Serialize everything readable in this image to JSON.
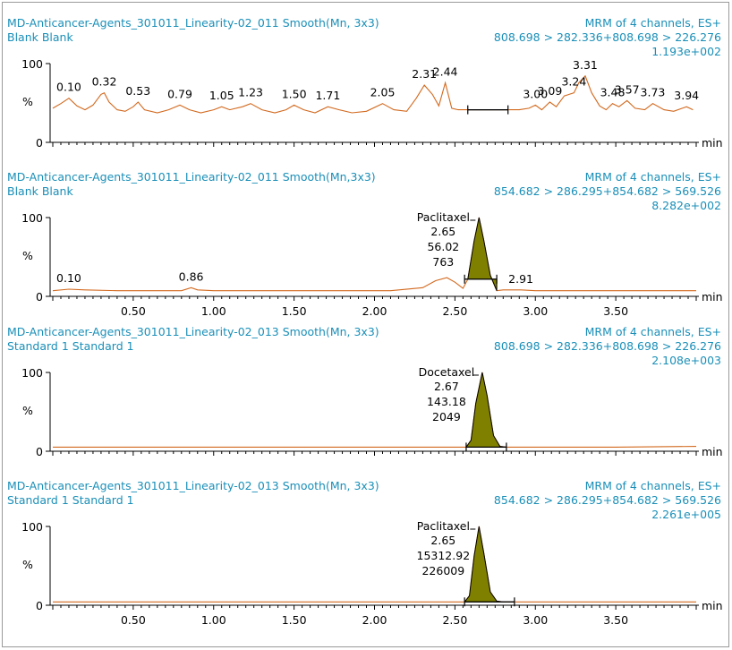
{
  "colors": {
    "header": "#1a8fb8",
    "trace": "#d2691e",
    "peak_fill": "#808000"
  },
  "chart_data": [
    {
      "type": "line",
      "title": "MD-Anticancer-Agents_301011_Linearity-02_011 Smooth(Mn, 3x3)",
      "subtitle": "Blank Blank",
      "channel": "MRM of 4 channels, ES+",
      "transition": "808.698 > 282.336+808.698 > 226.276",
      "intensity": "1.193e+002",
      "xlabel": "min",
      "ylabel": "%",
      "ytick_labels": [
        "100",
        "%",
        "0"
      ],
      "xticks": [],
      "xlim": [
        0,
        4.0
      ],
      "ylim": [
        0,
        100
      ],
      "peak_labels": [
        "0.10",
        "0.32",
        "0.53",
        "0.79",
        "1.05",
        "1.23",
        "1.50",
        "1.71",
        "2.05",
        "2.31",
        "2.44",
        "3.00",
        "3.09",
        "3.24",
        "3.31",
        "3.48",
        "3.57",
        "3.73",
        "3.94"
      ],
      "peak_label_x": [
        0.1,
        0.32,
        0.53,
        0.79,
        1.05,
        1.23,
        1.5,
        1.71,
        2.05,
        2.31,
        2.44,
        3.0,
        3.09,
        3.24,
        3.31,
        3.48,
        3.57,
        3.73,
        3.94
      ],
      "integrated_peak": {
        "start": 2.58,
        "end": 2.83
      },
      "series": [
        {
          "x": [
            0.0,
            0.05,
            0.1,
            0.15,
            0.2,
            0.25,
            0.3,
            0.32,
            0.35,
            0.4,
            0.45,
            0.5,
            0.53,
            0.57,
            0.65,
            0.72,
            0.79,
            0.85,
            0.92,
            1.0,
            1.05,
            1.1,
            1.18,
            1.23,
            1.3,
            1.38,
            1.45,
            1.5,
            1.56,
            1.63,
            1.71,
            1.78,
            1.86,
            1.95,
            2.05,
            2.12,
            2.2,
            2.26,
            2.31,
            2.36,
            2.4,
            2.44,
            2.48,
            2.52,
            2.58,
            2.63,
            2.67,
            2.7,
            2.73,
            2.76,
            2.79,
            2.83,
            2.9,
            2.96,
            3.0,
            3.04,
            3.09,
            3.13,
            3.18,
            3.24,
            3.27,
            3.31,
            3.35,
            3.4,
            3.44,
            3.48,
            3.52,
            3.57,
            3.62,
            3.68,
            3.73,
            3.8,
            3.86,
            3.94,
            3.98
          ],
          "values": [
            42,
            48,
            55,
            45,
            40,
            46,
            60,
            62,
            50,
            40,
            38,
            44,
            50,
            40,
            36,
            40,
            46,
            40,
            36,
            40,
            44,
            40,
            44,
            48,
            40,
            36,
            40,
            46,
            40,
            36,
            44,
            40,
            36,
            38,
            48,
            40,
            38,
            55,
            72,
            60,
            45,
            75,
            42,
            40,
            40,
            40,
            40,
            40,
            40,
            40,
            40,
            40,
            40,
            42,
            46,
            40,
            50,
            44,
            58,
            62,
            75,
            84,
            62,
            45,
            40,
            48,
            44,
            52,
            42,
            40,
            48,
            40,
            38,
            44,
            40
          ]
        }
      ]
    },
    {
      "type": "line",
      "title": "MD-Anticancer-Agents_301011_Linearity-02_011 Smooth(Mn,3x3)",
      "subtitle": "Blank Blank",
      "channel": "MRM of 4 channels, ES+",
      "transition": "854.682 > 286.295+854.682 > 569.526",
      "intensity": "8.282e+002",
      "xlabel": "min",
      "ylabel": "%",
      "ytick_labels": [
        "100",
        "%",
        "0"
      ],
      "xticks": [
        "0.50",
        "1.00",
        "1.50",
        "2.00",
        "2.50",
        "3.00",
        "3.50"
      ],
      "xlim": [
        0,
        4.0
      ],
      "ylim": [
        0,
        100
      ],
      "peak_labels": [
        "0.10",
        "0.86",
        "2.91"
      ],
      "peak_label_x": [
        0.1,
        0.86,
        2.91
      ],
      "peak_annotation": [
        "Paclitaxel",
        "2.65",
        "56.02",
        "763"
      ],
      "peak_rt": 2.65,
      "integrated_peak": {
        "start": 2.56,
        "end": 2.76
      },
      "series": [
        {
          "x": [
            0.0,
            0.1,
            0.2,
            0.4,
            0.6,
            0.8,
            0.86,
            0.9,
            1.0,
            1.3,
            1.6,
            1.9,
            2.1,
            2.3,
            2.38,
            2.45,
            2.5,
            2.55,
            2.58,
            2.62,
            2.65,
            2.68,
            2.72,
            2.76,
            2.8,
            2.91,
            3.0,
            3.2,
            3.4,
            3.6,
            3.8,
            4.0
          ],
          "values": [
            5,
            7,
            6,
            5,
            5,
            5,
            9,
            6,
            5,
            5,
            5,
            5,
            5,
            9,
            18,
            22,
            16,
            8,
            20,
            70,
            100,
            70,
            25,
            5,
            6,
            6,
            5,
            5,
            5,
            5,
            5,
            5
          ]
        }
      ]
    },
    {
      "type": "line",
      "title": "MD-Anticancer-Agents_301011_Linearity-02_013 Smooth(Mn, 3x3)",
      "subtitle": "Standard 1 Standard 1",
      "channel": "MRM of 4 channels, ES+",
      "transition": "808.698 > 282.336+808.698 > 226.276",
      "intensity": "2.108e+003",
      "xlabel": "min",
      "ylabel": "%",
      "ytick_labels": [
        "100",
        "%",
        "0"
      ],
      "xticks": [],
      "xlim": [
        0,
        4.0
      ],
      "ylim": [
        0,
        100
      ],
      "peak_labels": [],
      "peak_label_x": [],
      "peak_annotation": [
        "Docetaxel",
        "2.67",
        "143.18",
        "2049"
      ],
      "peak_rt": 2.67,
      "integrated_peak": {
        "start": 2.57,
        "end": 2.82
      },
      "series": [
        {
          "x": [
            0.0,
            0.5,
            1.0,
            1.5,
            2.0,
            2.5,
            2.57,
            2.6,
            2.63,
            2.67,
            2.7,
            2.74,
            2.78,
            2.82,
            3.0,
            3.5,
            4.0
          ],
          "values": [
            3,
            3,
            3,
            3,
            3,
            3,
            3,
            12,
            60,
            100,
            70,
            18,
            4,
            3,
            3,
            3,
            4
          ]
        }
      ]
    },
    {
      "type": "line",
      "title": "MD-Anticancer-Agents_301011_Linearity-02_013 Smooth(Mn, 3x3)",
      "subtitle": "Standard 1 Standard 1",
      "channel": "MRM of 4 channels, ES+",
      "transition": "854.682 > 286.295+854.682 > 569.526",
      "intensity": "2.261e+005",
      "xlabel": "min",
      "ylabel": "%",
      "ytick_labels": [
        "100",
        "%",
        "0"
      ],
      "xticks": [
        "0.50",
        "1.00",
        "1.50",
        "2.00",
        "2.50",
        "3.00",
        "3.50"
      ],
      "xlim": [
        0,
        4.0
      ],
      "ylim": [
        0,
        100
      ],
      "peak_labels": [],
      "peak_label_x": [],
      "peak_annotation": [
        "Paclitaxel",
        "2.65",
        "15312.92",
        "226009"
      ],
      "peak_rt": 2.65,
      "integrated_peak": {
        "start": 2.56,
        "end": 2.87
      },
      "series": [
        {
          "x": [
            0.0,
            0.5,
            1.0,
            1.5,
            2.0,
            2.5,
            2.56,
            2.59,
            2.62,
            2.65,
            2.68,
            2.72,
            2.76,
            2.8,
            2.87,
            3.0,
            3.5,
            4.0
          ],
          "values": [
            2,
            2,
            2,
            2,
            2,
            2,
            2,
            10,
            62,
            100,
            65,
            15,
            3,
            2,
            2,
            2,
            2,
            2
          ]
        }
      ]
    }
  ]
}
